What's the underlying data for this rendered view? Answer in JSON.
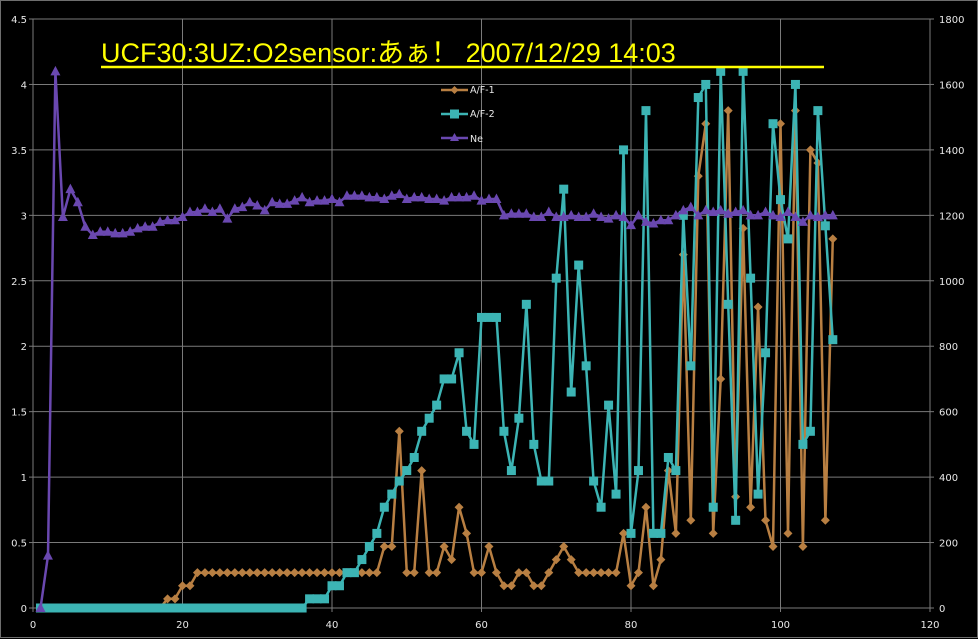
{
  "chart_data": {
    "type": "line",
    "title": "UCF30:3UZ:O2sensor:あぁ！ 2007/12/29 14:03",
    "xlabel": "",
    "ylabel": "",
    "y2label": "",
    "xlim": [
      0,
      120
    ],
    "ylim": [
      0,
      4.5
    ],
    "y2lim": [
      0,
      1800
    ],
    "x_ticks": [
      "0",
      "20",
      "40",
      "60",
      "80",
      "100",
      "120"
    ],
    "y_ticks": [
      "0",
      "0.5",
      "1",
      "1.5",
      "2",
      "2.5",
      "3",
      "3.5",
      "4",
      "4.5"
    ],
    "y2_ticks": [
      "0",
      "200",
      "400",
      "600",
      "800",
      "1000",
      "1200",
      "1400",
      "1600",
      "1800"
    ],
    "grid": true,
    "legend_position": "upper center inside",
    "series": [
      {
        "name": "A/F-1",
        "axis": "left",
        "color": "#b87f42",
        "marker": "diamond",
        "x_start": 1,
        "values": [
          0,
          0,
          0,
          0,
          0,
          0,
          0,
          0,
          0,
          0,
          0,
          0,
          0,
          0,
          0,
          0,
          0,
          0.07,
          0.07,
          0.17,
          0.17,
          0.27,
          0.27,
          0.27,
          0.27,
          0.27,
          0.27,
          0.27,
          0.27,
          0.27,
          0.27,
          0.27,
          0.27,
          0.27,
          0.27,
          0.27,
          0.27,
          0.27,
          0.27,
          0.27,
          0.27,
          0.27,
          0.27,
          0.27,
          0.27,
          0.27,
          0.47,
          0.47,
          1.35,
          0.27,
          0.27,
          1.05,
          0.27,
          0.27,
          0.47,
          0.37,
          0.77,
          0.57,
          0.27,
          0.27,
          0.47,
          0.27,
          0.17,
          0.17,
          0.27,
          0.27,
          0.17,
          0.17,
          0.27,
          0.37,
          0.47,
          0.37,
          0.27,
          0.27,
          0.27,
          0.27,
          0.27,
          0.27,
          0.57,
          0.17,
          0.27,
          0.77,
          0.17,
          0.37,
          1.05,
          0.57,
          2.7,
          0.67,
          3.3,
          3.7,
          0.57,
          1.75,
          3.8,
          0.85,
          2.9,
          0.77,
          2.3,
          0.67,
          0.47,
          3.7,
          0.57,
          3.8,
          0.47,
          3.5,
          3.4,
          0.67,
          2.82
        ]
      },
      {
        "name": "A/F-2",
        "axis": "left",
        "color": "#3cb4b4",
        "marker": "square",
        "x_start": 1,
        "values": [
          0,
          0,
          0,
          0,
          0,
          0,
          0,
          0,
          0,
          0,
          0,
          0,
          0,
          0,
          0,
          0,
          0,
          0,
          0,
          0,
          0,
          0,
          0,
          0,
          0,
          0,
          0,
          0,
          0,
          0,
          0,
          0,
          0,
          0,
          0,
          0,
          0.07,
          0.07,
          0.07,
          0.17,
          0.17,
          0.27,
          0.27,
          0.37,
          0.47,
          0.57,
          0.77,
          0.87,
          0.97,
          1.05,
          1.15,
          1.35,
          1.45,
          1.55,
          1.75,
          1.75,
          1.95,
          1.35,
          1.25,
          2.22,
          2.22,
          2.22,
          1.35,
          1.05,
          1.45,
          2.32,
          1.25,
          0.97,
          0.97,
          2.52,
          3.2,
          1.65,
          2.62,
          1.85,
          0.97,
          0.77,
          1.55,
          0.87,
          3.5,
          0.57,
          1.05,
          3.8,
          0.57,
          0.57,
          1.15,
          1.05,
          3.0,
          1.85,
          3.9,
          4.0,
          0.77,
          4.1,
          2.32,
          0.67,
          4.1,
          2.52,
          0.87,
          1.95,
          3.7,
          3.12,
          2.82,
          4.0,
          1.25,
          1.35,
          3.8,
          2.92,
          2.05
        ]
      },
      {
        "name": "Ne",
        "axis": "right",
        "color": "#6a48b0",
        "marker": "triangle",
        "x_start": 1,
        "values": [
          0,
          160,
          1640,
          1195,
          1280,
          1240,
          1165,
          1140,
          1150,
          1150,
          1145,
          1145,
          1150,
          1160,
          1165,
          1165,
          1180,
          1185,
          1185,
          1195,
          1210,
          1210,
          1220,
          1210,
          1220,
          1190,
          1220,
          1225,
          1240,
          1230,
          1215,
          1240,
          1235,
          1235,
          1245,
          1255,
          1240,
          1245,
          1245,
          1250,
          1240,
          1260,
          1260,
          1260,
          1255,
          1255,
          1250,
          1260,
          1265,
          1250,
          1255,
          1255,
          1250,
          1250,
          1245,
          1255,
          1255,
          1255,
          1260,
          1245,
          1250,
          1250,
          1200,
          1205,
          1205,
          1205,
          1195,
          1195,
          1210,
          1195,
          1195,
          1200,
          1195,
          1195,
          1205,
          1195,
          1190,
          1200,
          1195,
          1170,
          1200,
          1180,
          1175,
          1185,
          1185,
          1200,
          1215,
          1225,
          1200,
          1215,
          1210,
          1215,
          1205,
          1210,
          1215,
          1200,
          1200,
          1210,
          1200,
          1195,
          1210,
          1195,
          1180,
          1200,
          1195,
          1200,
          1200
        ]
      }
    ]
  },
  "legend": {
    "items": [
      {
        "label": "A/F-1"
      },
      {
        "label": "A/F-2"
      },
      {
        "label": "Ne"
      }
    ]
  }
}
